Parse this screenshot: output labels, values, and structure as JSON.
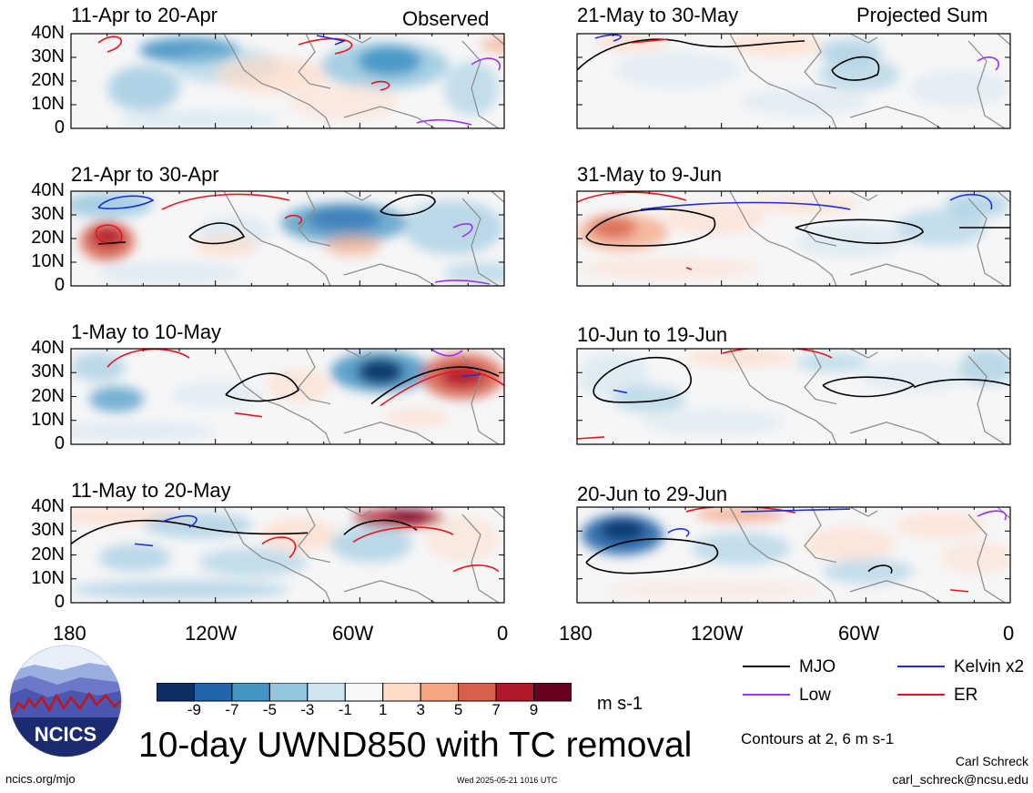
{
  "header": {
    "left_tag": "Observed",
    "right_tag": "Projected Sum"
  },
  "panels": {
    "left": [
      {
        "title": "11-Apr to 20-Apr"
      },
      {
        "title": "21-Apr to 30-Apr"
      },
      {
        "title": "1-May to 10-May"
      },
      {
        "title": "11-May to 20-May"
      }
    ],
    "right": [
      {
        "title": "21-May to 30-May"
      },
      {
        "title": "31-May to 9-Jun"
      },
      {
        "title": "10-Jun to 19-Jun"
      },
      {
        "title": "20-Jun to 29-Jun"
      }
    ]
  },
  "axes": {
    "y_ticks": [
      "40N",
      "30N",
      "20N",
      "10N",
      "0"
    ],
    "x_ticks": [
      "180",
      "120W",
      "60W",
      "0"
    ]
  },
  "colorbar": {
    "labels": [
      "-9",
      "-7",
      "-5",
      "-3",
      "-1",
      "1",
      "3",
      "5",
      "7",
      "9"
    ],
    "units": "m s-1",
    "colors": [
      "#0b2f63",
      "#2166ac",
      "#4393c3",
      "#92c5de",
      "#d1e5f0",
      "#f7f7f7",
      "#fddbc7",
      "#f4a582",
      "#d6604d",
      "#b2182b",
      "#67001f"
    ]
  },
  "legend": {
    "items": [
      {
        "label": "MJO",
        "color": "#000000"
      },
      {
        "label": "Kelvin x2",
        "color": "#1f2ed6"
      },
      {
        "label": "Low",
        "color": "#9b30ff"
      },
      {
        "label": "ER",
        "color": "#e8141b"
      }
    ],
    "contours_note": "Contours at 2, 6 m s-1"
  },
  "footer": {
    "main_title": "10-day UWND850 with TC removal",
    "site": "ncics.org/mjo",
    "timestamp": "Wed 2025-05-21 1016 UTC",
    "author": "Carl Schreck",
    "email": "carl_schreck@ncsu.edu",
    "logo_text": "NCICS"
  },
  "chart_data": {
    "type": "heatmap",
    "title": "10-day UWND850 with TC removal",
    "units": "m s-1",
    "variable": "850-hPa zonal wind anomaly",
    "lat_range": [
      "0",
      "40N"
    ],
    "lon_range": [
      "180",
      "0"
    ],
    "color_levels": [
      -9,
      -7,
      -5,
      -3,
      -1,
      1,
      3,
      5,
      7,
      9
    ],
    "contour_levels": [
      2,
      6
    ],
    "contour_series": [
      "MJO",
      "Kelvin x2",
      "Low",
      "ER"
    ],
    "panels": [
      {
        "period": "11-Apr to 20-Apr",
        "type": "Observed"
      },
      {
        "period": "21-Apr to 30-Apr",
        "type": "Observed"
      },
      {
        "period": "1-May to 10-May",
        "type": "Observed"
      },
      {
        "period": "11-May to 20-May",
        "type": "Observed"
      },
      {
        "period": "21-May to 30-May",
        "type": "Projected Sum"
      },
      {
        "period": "31-May to 9-Jun",
        "type": "Projected Sum"
      },
      {
        "period": "10-Jun to 19-Jun",
        "type": "Projected Sum"
      },
      {
        "period": "20-Jun to 29-Jun",
        "type": "Projected Sum"
      }
    ]
  }
}
